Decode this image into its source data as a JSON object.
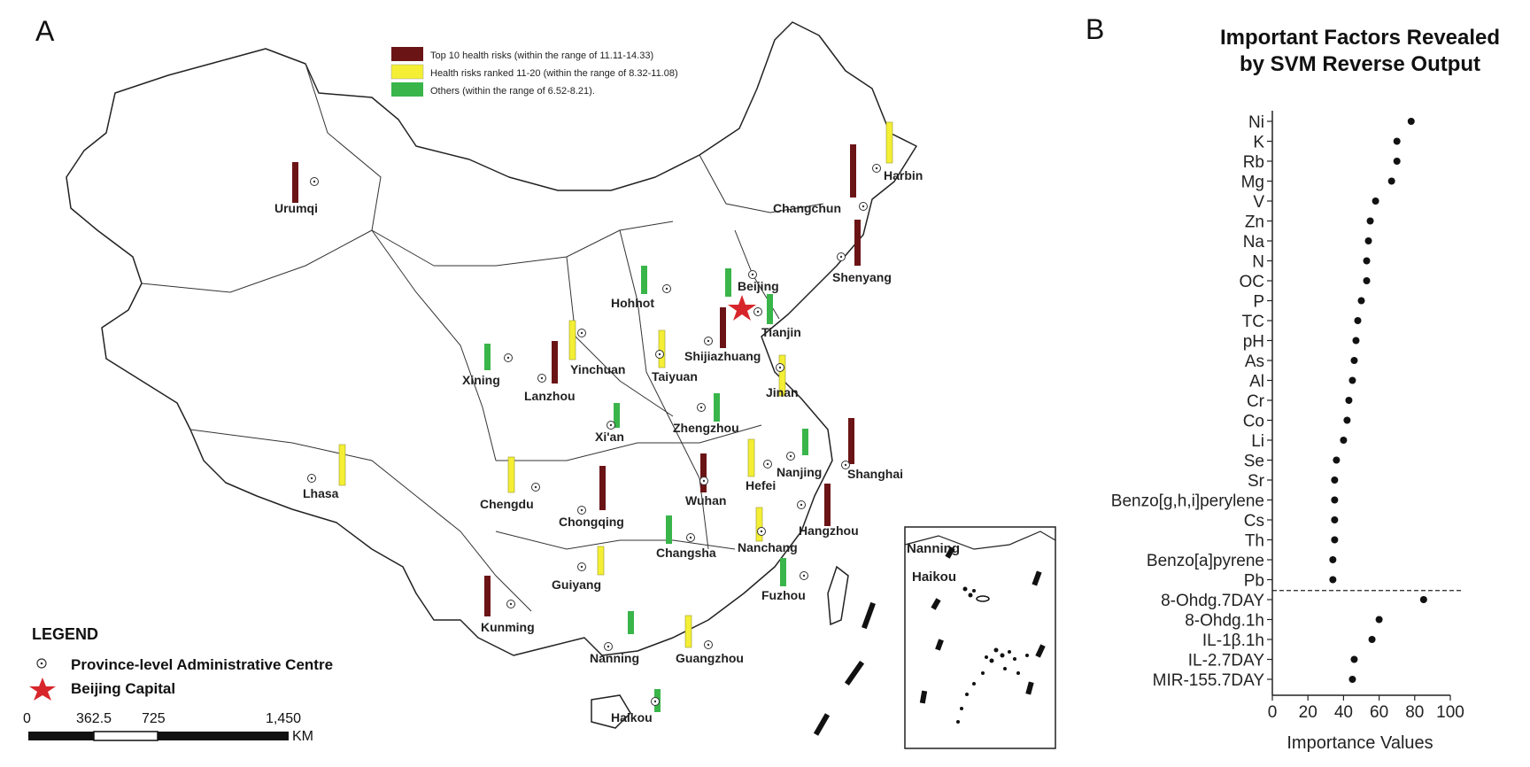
{
  "panel_a": {
    "label": "A",
    "risk_legend": [
      {
        "text": "Top 10 health risks (within the range of 11.11-14.33)",
        "color": "#6b1416"
      },
      {
        "text": "Health risks ranked 11-20 (within the range of 8.32-11.08)",
        "color": "#f4ef35"
      },
      {
        "text": "Others (within the range of 6.52-8.21).",
        "color": "#39b54a"
      }
    ],
    "legend": {
      "title": "LEGEND",
      "centre_label": "Province-level Administrative Centre",
      "capital_label": "Beijing Capital"
    },
    "scale": {
      "ticks": [
        "0",
        "362.5",
        "725",
        "1,450"
      ],
      "unit": "KM"
    },
    "inset_labels": [
      "Nanning",
      "Haikou"
    ],
    "cities": [
      {
        "name": "Urumqi",
        "risk": "top10"
      },
      {
        "name": "Harbin",
        "risk": "rank11_20"
      },
      {
        "name": "Changchun",
        "risk": "top10"
      },
      {
        "name": "Shenyang",
        "risk": "top10"
      },
      {
        "name": "Beijing",
        "risk": "others"
      },
      {
        "name": "Hohhot",
        "risk": "others"
      },
      {
        "name": "Tianjin",
        "risk": "others"
      },
      {
        "name": "Shijiazhuang",
        "risk": "top10"
      },
      {
        "name": "Yinchuan",
        "risk": "rank11_20"
      },
      {
        "name": "Taiyuan",
        "risk": "rank11_20"
      },
      {
        "name": "Xining",
        "risk": "others"
      },
      {
        "name": "Lanzhou",
        "risk": "top10"
      },
      {
        "name": "Jinan",
        "risk": "rank11_20"
      },
      {
        "name": "Zhengzhou",
        "risk": "others"
      },
      {
        "name": "Xi'an",
        "risk": "others"
      },
      {
        "name": "Nanjing",
        "risk": "others"
      },
      {
        "name": "Shanghai",
        "risk": "top10"
      },
      {
        "name": "Lhasa",
        "risk": "rank11_20"
      },
      {
        "name": "Chengdu",
        "risk": "rank11_20"
      },
      {
        "name": "Chongqing",
        "risk": "top10"
      },
      {
        "name": "Wuhan",
        "risk": "top10"
      },
      {
        "name": "Hefei",
        "risk": "rank11_20"
      },
      {
        "name": "Hangzhou",
        "risk": "top10"
      },
      {
        "name": "Nanchang",
        "risk": "rank11_20"
      },
      {
        "name": "Changsha",
        "risk": "others"
      },
      {
        "name": "Guiyang",
        "risk": "rank11_20"
      },
      {
        "name": "Fuzhou",
        "risk": "others"
      },
      {
        "name": "Kunming",
        "risk": "top10"
      },
      {
        "name": "Nanning",
        "risk": "others"
      },
      {
        "name": "Guangzhou",
        "risk": "rank11_20"
      },
      {
        "name": "Haikou",
        "risk": "others"
      }
    ]
  },
  "chart_data": {
    "type": "scatter",
    "panel_label": "B",
    "title": "Important Factors Revealed by SVM Reverse Output",
    "xlabel": "Importance Values",
    "ylabel": "",
    "xlim": [
      0,
      100
    ],
    "xticks": [
      "0",
      "20",
      "40",
      "60",
      "80",
      "100"
    ],
    "grid": false,
    "categories": [
      "Ni",
      "K",
      "Rb",
      "Mg",
      "V",
      "Zn",
      "Na",
      "N",
      "OC",
      "P",
      "TC",
      "pH",
      "As",
      "Al",
      "Cr",
      "Co",
      "Li",
      "Se",
      "Sr",
      "Benzo[g,h,i]perylene",
      "Cs",
      "Th",
      "Benzo[a]pyrene",
      "Pb",
      "8-Ohdg.7DAY",
      "8-Ohdg.1h",
      "IL-1β.1h",
      "IL-2.7DAY",
      "MIR-155.7DAY"
    ],
    "values": [
      78,
      70,
      70,
      67,
      58,
      55,
      54,
      53,
      53,
      50,
      48,
      47,
      46,
      45,
      43,
      42,
      40,
      36,
      35,
      35,
      35,
      35,
      34,
      34,
      85,
      60,
      56,
      46,
      45
    ],
    "separator_after": "Pb"
  }
}
